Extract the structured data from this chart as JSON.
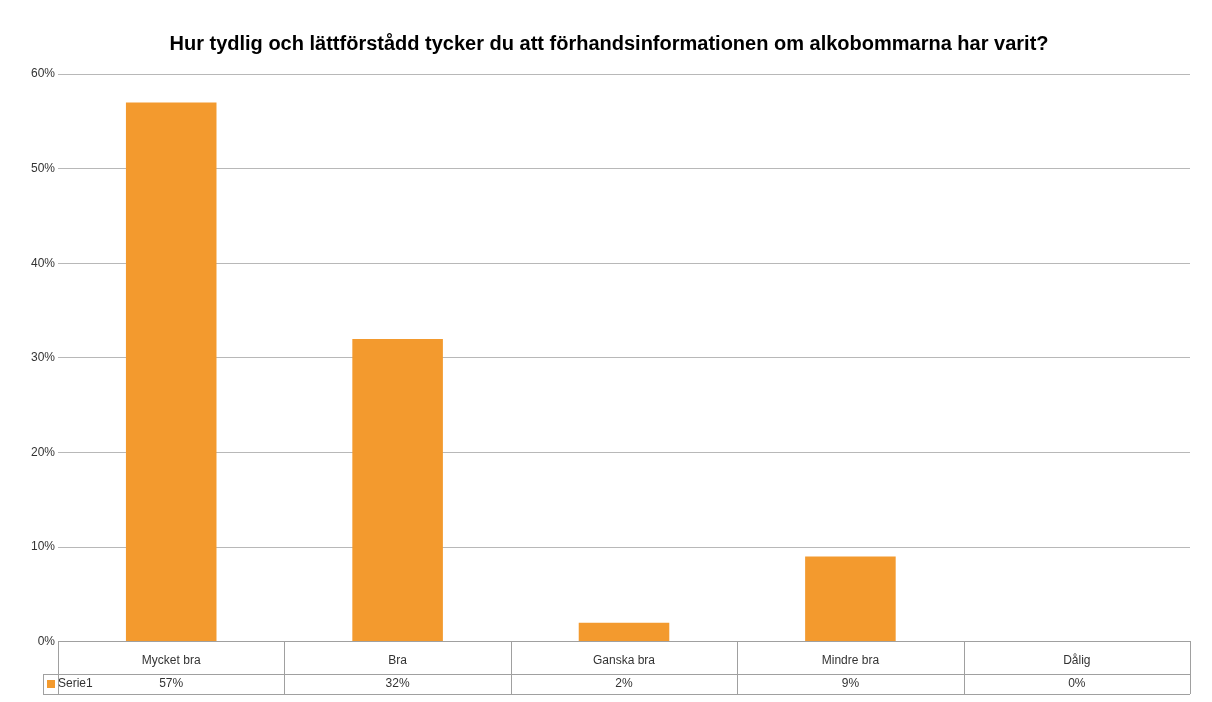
{
  "chart_data": {
    "type": "bar",
    "title": "Hur tydlig och lättförstådd tycker du att förhandsinformationen om alkobommarna har varit?",
    "categories": [
      "Mycket bra",
      "Bra",
      "Ganska bra",
      "Mindre bra",
      "Dålig"
    ],
    "series": [
      {
        "name": "Serie1",
        "color": "#f39a2e",
        "values": [
          57,
          32,
          2,
          9,
          0
        ],
        "value_labels": [
          "57%",
          "32%",
          "2%",
          "9%",
          "0%"
        ]
      }
    ],
    "ylim": [
      0,
      60
    ],
    "yticks": [
      {
        "value": 0,
        "label": "0%"
      },
      {
        "value": 10,
        "label": "10%"
      },
      {
        "value": 20,
        "label": "20%"
      },
      {
        "value": 30,
        "label": "30%"
      },
      {
        "value": 40,
        "label": "40%"
      },
      {
        "value": 50,
        "label": "50%"
      },
      {
        "value": 60,
        "label": "60%"
      }
    ],
    "grid": "y",
    "legend": "bottom"
  }
}
